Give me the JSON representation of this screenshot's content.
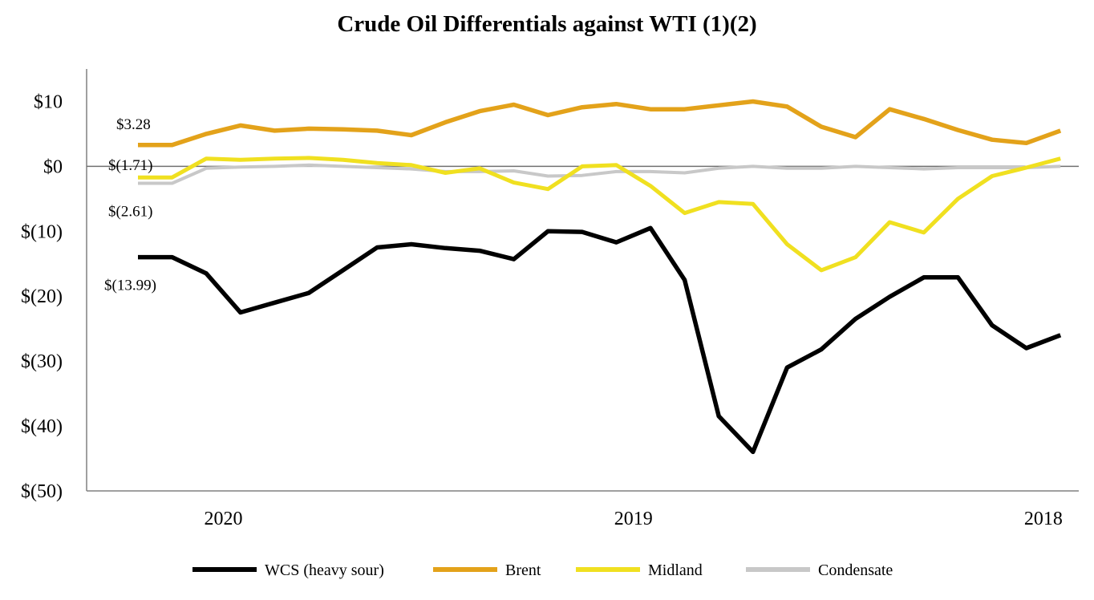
{
  "chart_data": {
    "type": "line",
    "title": "Crude Oil Differentials against WTI (1)(2)",
    "xlabel": "",
    "ylabel": "",
    "ylim": [
      -50,
      15
    ],
    "y_ticks": [
      10,
      0,
      -10,
      -20,
      -30,
      -40,
      -50
    ],
    "y_tick_labels": [
      "$10",
      "$0",
      "$(10)",
      "$(20)",
      "$(30)",
      "$(40)",
      "$(50)"
    ],
    "x_tick_labels": [
      "2020",
      "2019",
      "2018"
    ],
    "x_tick_positions": [
      2.5,
      14.5,
      26.5
    ],
    "zero_line": true,
    "grid": false,
    "legend": "bottom",
    "series": [
      {
        "name": "WCS (heavy sour)",
        "color": "#000000",
        "values": [
          -13.99,
          -13.99,
          -16.5,
          -22.5,
          -21.0,
          -19.5,
          -16.0,
          -12.5,
          -12.0,
          -12.6,
          -13.0,
          -14.3,
          -10.0,
          -10.1,
          -11.7,
          -9.5,
          -17.5,
          -38.5,
          -44.0,
          -31.0,
          -28.2,
          -23.5,
          -20.1,
          -17.1,
          -17.1,
          -24.5,
          -28.0,
          -26.0
        ]
      },
      {
        "name": "Brent",
        "color": "#e3a21a",
        "values": [
          3.28,
          3.28,
          5.0,
          6.3,
          5.5,
          5.8,
          5.7,
          5.5,
          4.8,
          6.8,
          8.5,
          9.5,
          7.9,
          9.1,
          9.6,
          8.8,
          8.8,
          9.4,
          10.0,
          9.2,
          6.1,
          4.5,
          8.8,
          7.3,
          5.6,
          4.1,
          3.6,
          5.5
        ]
      },
      {
        "name": "Midland",
        "color": "#f0e020",
        "values": [
          -1.71,
          -1.71,
          1.2,
          1.0,
          1.2,
          1.3,
          1.0,
          0.5,
          0.2,
          -1.0,
          -0.3,
          -2.5,
          -3.5,
          0.0,
          0.2,
          -3.0,
          -7.2,
          -5.5,
          -5.8,
          -12.0,
          -16.0,
          -14.0,
          -8.6,
          -10.2,
          -5.0,
          -1.5,
          -0.2,
          1.2
        ]
      },
      {
        "name": "Condensate",
        "color": "#c8c8c8",
        "values": [
          -2.61,
          -2.61,
          -0.3,
          -0.1,
          0.0,
          0.2,
          0.0,
          -0.2,
          -0.4,
          -0.8,
          -0.8,
          -0.7,
          -1.5,
          -1.4,
          -0.8,
          -0.8,
          -1.0,
          -0.3,
          0.0,
          -0.3,
          -0.3,
          0.0,
          -0.2,
          -0.4,
          -0.2,
          -0.2,
          -0.2,
          0.0
        ]
      }
    ],
    "annotations": [
      {
        "text": "$3.28",
        "series": "Brent",
        "index": 0
      },
      {
        "text": "$(1.71)",
        "series": "Midland",
        "index": 0
      },
      {
        "text": "$(2.61)",
        "series": "Condensate",
        "index": 0
      },
      {
        "text": "$(13.99)",
        "series": "WCS (heavy sour)",
        "index": 0
      }
    ]
  }
}
